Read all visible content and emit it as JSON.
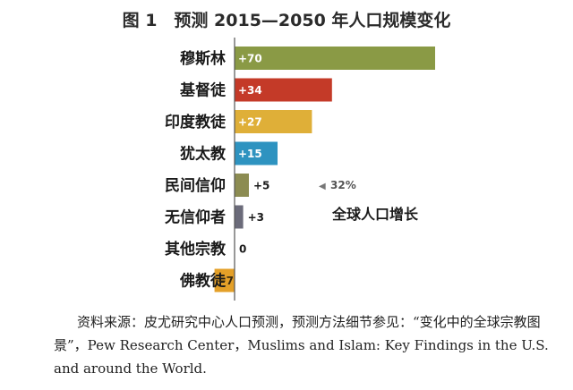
{
  "figure": {
    "title": "图 1　预测 2015—2050 年人口规模变化",
    "source_note": "资料来源：皮尤研究中心人口预测，预测方法细节参见：“变化中的全球宗教图景”，Pew Research Center，Muslims and Islam: Key Findings in the U.S. and around the World."
  },
  "chart_data": {
    "type": "bar",
    "orientation": "horizontal",
    "title": "图 1　预测 2015—2050 年人口规模变化",
    "categories": [
      "穆斯林",
      "基督徒",
      "印度教徒",
      "犹太教",
      "民间信仰",
      "无信仰者",
      "其他宗教",
      "佛教徒"
    ],
    "values": [
      70,
      34,
      27,
      15,
      5,
      3,
      0,
      -7
    ],
    "value_labels": [
      "+70",
      "+34",
      "+27",
      "+15",
      "+5",
      "+3",
      "0",
      "−7"
    ],
    "colors": [
      "#8a9a45",
      "#c43a28",
      "#dfaf38",
      "#2e93c0",
      "#8c8c52",
      "#6b6b7a",
      "#999999",
      "#e4a028"
    ],
    "xlim": [
      -7,
      70
    ],
    "grid": false,
    "annotation": {
      "marker": "◀",
      "value": "32%",
      "label": "全球人口增长"
    }
  }
}
